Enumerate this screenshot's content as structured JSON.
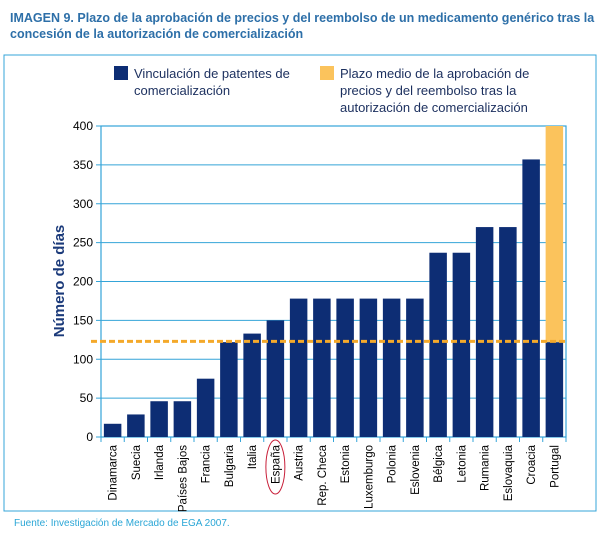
{
  "header": {
    "lead": "IMAGEN 9.",
    "title": "Plazo de la aprobación de precios y del reembolso de un medicamento genérico tras la concesión de la autorización de comercialización"
  },
  "footer": {
    "source": "Fuente: Investigación de Mercado de EGA 2007."
  },
  "colors": {
    "navy": "#0d2d74",
    "orange": "#fbc35c",
    "dashed_line": "#f4a92b",
    "frame": "#34a4d8",
    "highlight_circle": "#c8203a"
  },
  "chart_data": {
    "type": "bar",
    "ylabel": "Número de días",
    "xlabel": "",
    "ylim": [
      0,
      400
    ],
    "yticks": [
      0,
      50,
      100,
      150,
      200,
      250,
      300,
      350,
      400
    ],
    "legend": {
      "placement": "top",
      "items": [
        {
          "lines": [
            "Vinculación de patentes de",
            "comercialización"
          ],
          "color": "#0d2d74"
        },
        {
          "lines": [
            "Plazo medio de la aprobación de",
            "precios y del reembolso tras la",
            "autorización de comercialización"
          ],
          "color": "#fbc35c"
        }
      ]
    },
    "categories": [
      "Dinamarca",
      "Suecia",
      "Irlanda",
      "Países Bajos",
      "Francia",
      "Bulgaria",
      "Italia",
      "España",
      "Austria",
      "Rep. Checa",
      "Estonia",
      "Luxemburgo",
      "Polonia",
      "Eslovenia",
      "Bélgica",
      "Letonia",
      "Rumania",
      "Eslovaquia",
      "Croacia",
      "Portugal"
    ],
    "series": [
      {
        "name": "Vinculación de patentes de comercialización",
        "values": [
          17,
          29,
          46,
          46,
          75,
          122,
          133,
          150,
          178,
          178,
          178,
          178,
          178,
          178,
          237,
          237,
          270,
          270,
          357,
          122
        ]
      },
      {
        "name": "Plazo medio de la aprobación de precios y del reembolso tras la autorización de comercialización",
        "values": [
          0,
          0,
          0,
          0,
          0,
          0,
          0,
          0,
          0,
          0,
          0,
          0,
          0,
          0,
          0,
          0,
          0,
          0,
          0,
          278
        ]
      }
    ],
    "average_line": 123,
    "highlighted_category": "España"
  }
}
